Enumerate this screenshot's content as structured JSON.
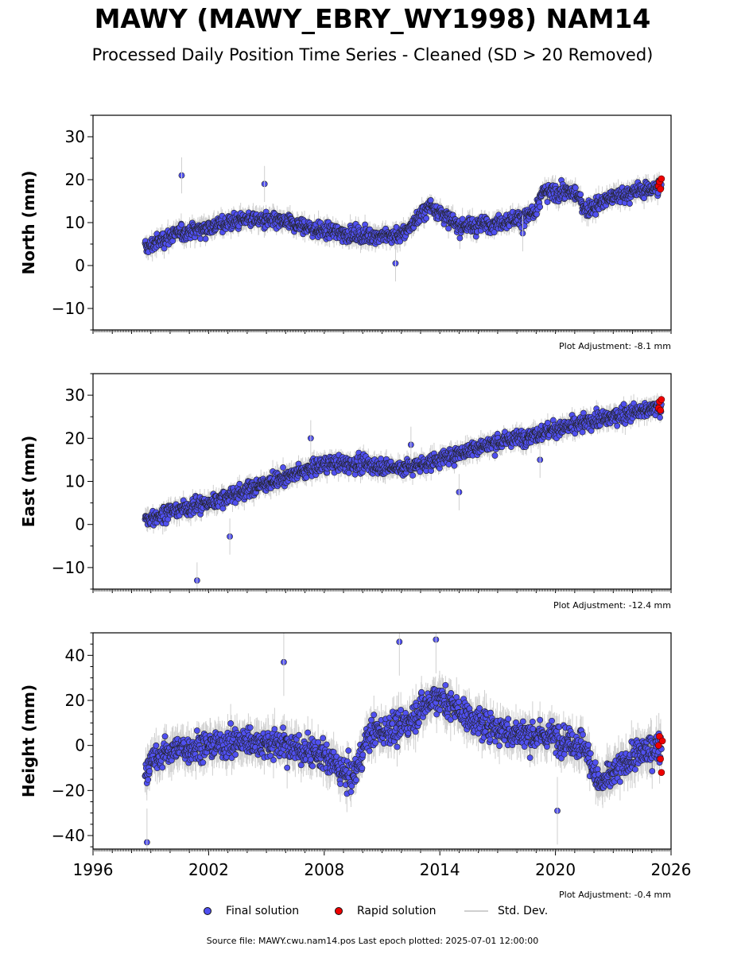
{
  "title": "MAWY (MAWY_EBRY_WY1998) NAM14",
  "subtitle": "Processed Daily Position Time Series - Cleaned (SD > 20 Removed)",
  "colors": {
    "final": "#5050f0",
    "rapid": "#ee0000",
    "stddev": "#cfcfcf",
    "marker_edge": "#222222"
  },
  "legend": {
    "final": "Final solution",
    "rapid": "Rapid solution",
    "stddev": "Std. Dev."
  },
  "footer": "Source file: MAWY.cwu.nam14.pos  Last epoch plotted: 2025-07-01 12:00:00",
  "chart_data": [
    {
      "type": "scatter",
      "ylabel": "North (mm)",
      "xlim": [
        1996,
        2026
      ],
      "ylim": [
        -15,
        35
      ],
      "yticks": [
        -10,
        0,
        10,
        20,
        30
      ],
      "adjustment": "Plot Adjustment: -8.1 mm",
      "trend_years": [
        1998.7,
        2000,
        2002,
        2004,
        2006,
        2008,
        2010,
        2012,
        2013.5,
        2015,
        2017,
        2019,
        2019.3,
        2021,
        2021.6,
        2023,
        2025.5
      ],
      "trend_values": [
        4,
        7,
        9,
        11,
        10,
        8,
        7,
        7,
        14,
        9,
        10,
        12,
        17,
        17,
        13,
        16,
        18.5
      ],
      "scatter_mm": 2.8,
      "rapid_x": [
        2025.35,
        2025.4,
        2025.45,
        2025.5
      ],
      "rapid_y": [
        18.5,
        19.5,
        17.8,
        20.2
      ],
      "outliers_x": [
        2000.6,
        2004.9,
        2011.7,
        2018.3
      ],
      "outliers_y": [
        21,
        19,
        0.5,
        7.5
      ]
    },
    {
      "type": "scatter",
      "ylabel": "East (mm)",
      "xlim": [
        1996,
        2026
      ],
      "ylim": [
        -15,
        35
      ],
      "yticks": [
        -10,
        0,
        10,
        20,
        30
      ],
      "adjustment": "Plot Adjustment: -12.4 mm",
      "trend_years": [
        1998.7,
        2000,
        2002,
        2004,
        2006,
        2008,
        2010,
        2012,
        2014,
        2016,
        2018,
        2020,
        2022,
        2024,
        2025.5
      ],
      "trend_values": [
        1,
        3,
        5,
        8,
        11,
        14,
        14,
        13,
        15,
        18,
        20,
        22,
        24,
        26,
        27
      ],
      "scatter_mm": 2.8,
      "rapid_x": [
        2025.35,
        2025.4,
        2025.45,
        2025.5
      ],
      "rapid_y": [
        27,
        28.5,
        26.5,
        29
      ],
      "outliers_x": [
        2001.4,
        2003.1,
        2007.3,
        2012.5,
        2015,
        2019.2
      ],
      "outliers_y": [
        -13,
        -2.8,
        20,
        18.5,
        7.5,
        15
      ]
    },
    {
      "type": "scatter",
      "ylabel": "Height (mm)",
      "xlim": [
        1996,
        2026
      ],
      "ylim": [
        -46,
        50
      ],
      "yticks": [
        -40,
        -20,
        0,
        20,
        40
      ],
      "xticks": [
        1996,
        2002,
        2008,
        2014,
        2020,
        2026
      ],
      "adjustment": "Plot Adjustment: -0.4 mm",
      "trend_years": [
        1998.7,
        2000,
        2002,
        2004,
        2006,
        2008,
        2009.5,
        2010.3,
        2012,
        2013.8,
        2016,
        2018,
        2020,
        2021.5,
        2022.3,
        2024,
        2025.5
      ],
      "trend_values": [
        -10,
        -2,
        0,
        2,
        0,
        -5,
        -15,
        5,
        8,
        22,
        10,
        5,
        4,
        0,
        -18,
        -5,
        0
      ],
      "scatter_mm": 10,
      "rapid_x": [
        2025.35,
        2025.4,
        2025.45,
        2025.5,
        2025.55
      ],
      "rapid_y": [
        0,
        4,
        -6,
        -12,
        2
      ],
      "outliers_x": [
        1998.8,
        2005.9,
        2011.9,
        2013.8,
        2020.1
      ],
      "outliers_y": [
        -43,
        37,
        46,
        47,
        -29
      ]
    }
  ]
}
